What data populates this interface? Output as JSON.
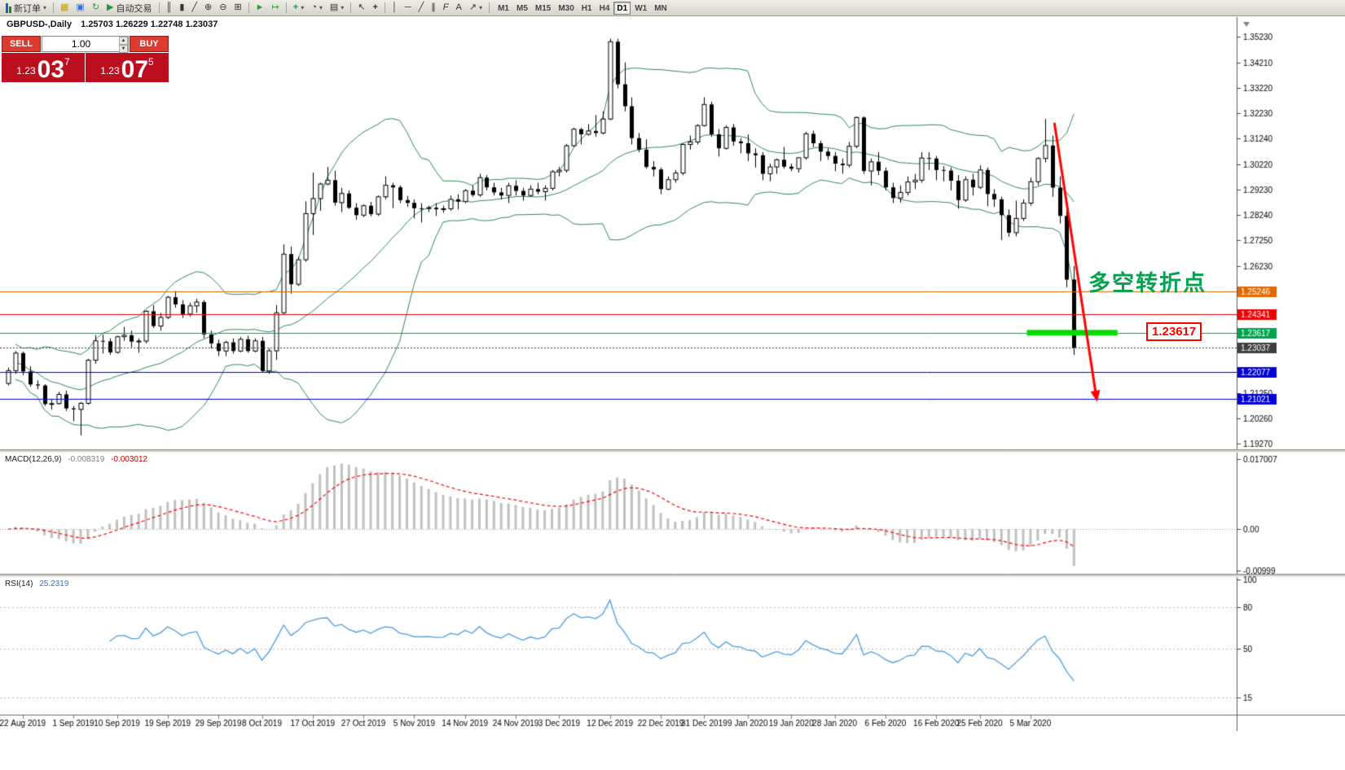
{
  "toolbar": {
    "new_order_label": "新订单",
    "auto_trading_label": "自动交易",
    "timeframes": [
      "M1",
      "M5",
      "M15",
      "M30",
      "H1",
      "H4",
      "D1",
      "W1",
      "MN"
    ],
    "active_timeframe": "D1"
  },
  "icons": {
    "market_watch": "▦",
    "profiles": "▣",
    "refresh": "↻",
    "auto_trading_play": "▶",
    "bar_chart": "║",
    "candle_chart": "▮",
    "line_chart": "╱",
    "zoom_in": "⊕",
    "zoom_out": "⊖",
    "tile_windows": "⊞",
    "auto_scroll": "►",
    "chart_shift": "↦",
    "indicators": "+",
    "periods": "◔",
    "templates": "▤",
    "cursor": "↖",
    "crosshair": "+",
    "vline": "│",
    "hline": "─",
    "trendline": "╱",
    "channel": "∥",
    "fibonacci": "F",
    "text_tool": "A",
    "arrows_tool": "↗",
    "caret": "▾",
    "spin_up": "▲",
    "spin_down": "▼"
  },
  "chart_header": {
    "title": "GBPUSD-,Daily",
    "ohlc": "1.25703 1.26229 1.22748 1.23037"
  },
  "trade_panel": {
    "sell_label": "SELL",
    "buy_label": "BUY",
    "volume": "1.00",
    "sell_small": "1.23",
    "sell_big": "03",
    "sell_sup": "7",
    "buy_small": "1.23",
    "buy_big": "07",
    "buy_sup": "5"
  },
  "indicators": {
    "macd_title": "MACD(12,26,9)",
    "macd_v1": "-0.008319",
    "macd_v2": "-0.003012",
    "rsi_title": "RSI(14)",
    "rsi_value": "25.2319"
  },
  "annotations": {
    "turning_point": "多空转折点",
    "price_label": "1.23617"
  },
  "chart_data": {
    "type": "candlestick",
    "symbol": "GBPUSD",
    "period": "Daily",
    "last_ohlc": {
      "open": 1.25703,
      "high": 1.26229,
      "low": 1.22748,
      "close": 1.23037
    },
    "candles": [
      [
        1.2163,
        1.2225,
        1.2155,
        1.2213
      ],
      [
        1.2213,
        1.229,
        1.22,
        1.2282
      ],
      [
        1.2282,
        1.2288,
        1.2195,
        1.221
      ],
      [
        1.221,
        1.223,
        1.215,
        1.2159
      ],
      [
        1.2159,
        1.2175,
        1.214,
        1.2155
      ],
      [
        1.2155,
        1.216,
        1.2075,
        1.2082
      ],
      [
        1.2082,
        1.21,
        1.206,
        1.2084
      ],
      [
        1.2084,
        1.213,
        1.208,
        1.212
      ],
      [
        1.212,
        1.2135,
        1.2055,
        1.2065
      ],
      [
        1.2065,
        1.2075,
        1.2015,
        1.2061
      ],
      [
        1.2061,
        1.209,
        1.1959,
        1.2085
      ],
      [
        1.2085,
        1.226,
        1.208,
        1.2254
      ],
      [
        1.2254,
        1.2353,
        1.224,
        1.233
      ],
      [
        1.233,
        1.2355,
        1.228,
        1.2328
      ],
      [
        1.2328,
        1.234,
        1.2275,
        1.2285
      ],
      [
        1.2285,
        1.235,
        1.228,
        1.2346
      ],
      [
        1.2346,
        1.2385,
        1.233,
        1.2352
      ],
      [
        1.2352,
        1.237,
        1.2305,
        1.2327
      ],
      [
        1.2327,
        1.234,
        1.2283,
        1.2329
      ],
      [
        1.2329,
        1.245,
        1.232,
        1.2446
      ],
      [
        1.2446,
        1.247,
        1.238,
        1.2388
      ],
      [
        1.2388,
        1.244,
        1.237,
        1.2422
      ],
      [
        1.2422,
        1.2506,
        1.2415,
        1.2501
      ],
      [
        1.2501,
        1.2525,
        1.246,
        1.2473
      ],
      [
        1.2473,
        1.249,
        1.242,
        1.2435
      ],
      [
        1.2435,
        1.248,
        1.2425,
        1.2467
      ],
      [
        1.2467,
        1.2495,
        1.244,
        1.2482
      ],
      [
        1.2482,
        1.249,
        1.234,
        1.2355
      ],
      [
        1.2355,
        1.237,
        1.23,
        1.232
      ],
      [
        1.232,
        1.2335,
        1.227,
        1.229
      ],
      [
        1.229,
        1.233,
        1.227,
        1.2324
      ],
      [
        1.2324,
        1.234,
        1.228,
        1.229
      ],
      [
        1.229,
        1.2345,
        1.2285,
        1.2336
      ],
      [
        1.2336,
        1.235,
        1.2283,
        1.229
      ],
      [
        1.229,
        1.234,
        1.2285,
        1.233
      ],
      [
        1.233,
        1.2345,
        1.2205,
        1.2212
      ],
      [
        1.2212,
        1.23,
        1.22,
        1.2291
      ],
      [
        1.2291,
        1.247,
        1.2255,
        1.244
      ],
      [
        1.244,
        1.2708,
        1.2435,
        1.267
      ],
      [
        1.267,
        1.27,
        1.2515,
        1.2552
      ],
      [
        1.2552,
        1.266,
        1.2545,
        1.2648
      ],
      [
        1.2648,
        1.2877,
        1.264,
        1.2829
      ],
      [
        1.2829,
        1.299,
        1.2745,
        1.2888
      ],
      [
        1.2888,
        1.295,
        1.284,
        1.2945
      ],
      [
        1.2945,
        1.3012,
        1.294,
        1.296
      ],
      [
        1.296,
        1.2997,
        1.286,
        1.2872
      ],
      [
        1.2872,
        1.293,
        1.2835,
        1.2908
      ],
      [
        1.2908,
        1.292,
        1.2847,
        1.2852
      ],
      [
        1.2852,
        1.287,
        1.2805,
        1.2823
      ],
      [
        1.2823,
        1.2865,
        1.2815,
        1.286
      ],
      [
        1.286,
        1.2875,
        1.2818,
        1.2827
      ],
      [
        1.2827,
        1.29,
        1.282,
        1.2895
      ],
      [
        1.2895,
        1.2975,
        1.2885,
        1.294
      ],
      [
        1.294,
        1.295,
        1.285,
        1.2932
      ],
      [
        1.2932,
        1.294,
        1.287,
        1.2882
      ],
      [
        1.2882,
        1.2898,
        1.2855,
        1.2871
      ],
      [
        1.2871,
        1.2885,
        1.281,
        1.285
      ],
      [
        1.285,
        1.287,
        1.2794,
        1.2849
      ],
      [
        1.2849,
        1.286,
        1.2835,
        1.2852
      ],
      [
        1.2852,
        1.287,
        1.282,
        1.2846
      ],
      [
        1.2846,
        1.286,
        1.2832,
        1.2848
      ],
      [
        1.2848,
        1.29,
        1.284,
        1.2885
      ],
      [
        1.2885,
        1.2905,
        1.2845,
        1.2876
      ],
      [
        1.2876,
        1.2925,
        1.287,
        1.2919
      ],
      [
        1.2919,
        1.294,
        1.2895,
        1.2902
      ],
      [
        1.2902,
        1.2985,
        1.2895,
        1.297
      ],
      [
        1.297,
        1.298,
        1.292,
        1.2932
      ],
      [
        1.2932,
        1.295,
        1.29,
        1.2912
      ],
      [
        1.2912,
        1.293,
        1.2885,
        1.29
      ],
      [
        1.29,
        1.295,
        1.287,
        1.2938
      ],
      [
        1.2938,
        1.296,
        1.29,
        1.2918
      ],
      [
        1.2918,
        1.293,
        1.288,
        1.29
      ],
      [
        1.29,
        1.294,
        1.2895,
        1.2925
      ],
      [
        1.2925,
        1.295,
        1.2905,
        1.2915
      ],
      [
        1.2915,
        1.294,
        1.288,
        1.2928
      ],
      [
        1.2928,
        1.3,
        1.292,
        1.2993
      ],
      [
        1.2993,
        1.3012,
        1.2975,
        1.2999
      ],
      [
        1.2999,
        1.3102,
        1.299,
        1.3095
      ],
      [
        1.3095,
        1.3166,
        1.309,
        1.316
      ],
      [
        1.316,
        1.3165,
        1.31,
        1.314
      ],
      [
        1.314,
        1.318,
        1.3135,
        1.3153
      ],
      [
        1.3153,
        1.3215,
        1.313,
        1.3145
      ],
      [
        1.3145,
        1.323,
        1.314,
        1.32
      ],
      [
        1.32,
        1.3515,
        1.3195,
        1.3503
      ],
      [
        1.3503,
        1.3515,
        1.332,
        1.3336
      ],
      [
        1.3336,
        1.3422,
        1.323,
        1.325
      ],
      [
        1.325,
        1.3285,
        1.31,
        1.3125
      ],
      [
        1.3125,
        1.3145,
        1.307,
        1.308
      ],
      [
        1.308,
        1.312,
        1.3005,
        1.3012
      ],
      [
        1.3012,
        1.3035,
        1.2975,
        1.3002
      ],
      [
        1.3002,
        1.301,
        1.2905,
        1.2925
      ],
      [
        1.2925,
        1.2975,
        1.292,
        1.2962
      ],
      [
        1.2962,
        1.3,
        1.295,
        1.2988
      ],
      [
        1.2988,
        1.3105,
        1.298,
        1.31
      ],
      [
        1.31,
        1.3135,
        1.308,
        1.311
      ],
      [
        1.311,
        1.318,
        1.31,
        1.3174
      ],
      [
        1.3174,
        1.3285,
        1.317,
        1.3257
      ],
      [
        1.3257,
        1.3268,
        1.313,
        1.314
      ],
      [
        1.314,
        1.316,
        1.3053,
        1.3085
      ],
      [
        1.3085,
        1.3175,
        1.308,
        1.3167
      ],
      [
        1.3167,
        1.318,
        1.3095,
        1.3112
      ],
      [
        1.3112,
        1.3125,
        1.3065,
        1.3105
      ],
      [
        1.3105,
        1.314,
        1.3035,
        1.3065
      ],
      [
        1.3065,
        1.3085,
        1.301,
        1.3058
      ],
      [
        1.3058,
        1.307,
        1.296,
        1.2985
      ],
      [
        1.2985,
        1.3025,
        1.2955,
        1.3012
      ],
      [
        1.3012,
        1.3045,
        1.2985,
        1.304
      ],
      [
        1.304,
        1.309,
        1.3005,
        1.3013
      ],
      [
        1.3013,
        1.3025,
        1.2995,
        1.3005
      ],
      [
        1.3005,
        1.305,
        1.299,
        1.3048
      ],
      [
        1.3048,
        1.315,
        1.304,
        1.3142
      ],
      [
        1.3142,
        1.3155,
        1.309,
        1.3105
      ],
      [
        1.3105,
        1.3115,
        1.3035,
        1.3072
      ],
      [
        1.3072,
        1.3085,
        1.304,
        1.3055
      ],
      [
        1.3055,
        1.307,
        1.2995,
        1.3025
      ],
      [
        1.3025,
        1.3045,
        1.2985,
        1.3019
      ],
      [
        1.3019,
        1.311,
        1.301,
        1.3093
      ],
      [
        1.3093,
        1.321,
        1.3085,
        1.3206
      ],
      [
        1.3206,
        1.321,
        1.2985,
        1.2996
      ],
      [
        1.2996,
        1.3045,
        1.294,
        1.3032
      ],
      [
        1.3032,
        1.307,
        1.298,
        1.2997
      ],
      [
        1.2997,
        1.301,
        1.292,
        1.2932
      ],
      [
        1.2932,
        1.295,
        1.287,
        1.289
      ],
      [
        1.289,
        1.294,
        1.2872,
        1.2912
      ],
      [
        1.2912,
        1.2975,
        1.29,
        1.2953
      ],
      [
        1.2953,
        1.2985,
        1.2925,
        1.296
      ],
      [
        1.296,
        1.307,
        1.295,
        1.3047
      ],
      [
        1.3047,
        1.307,
        1.3,
        1.3045
      ],
      [
        1.3045,
        1.3055,
        1.296,
        1.3
      ],
      [
        1.3,
        1.3015,
        1.2955,
        1.2998
      ],
      [
        1.2998,
        1.301,
        1.292,
        1.2958
      ],
      [
        1.2958,
        1.298,
        1.2848,
        1.2882
      ],
      [
        1.2882,
        1.2975,
        1.2875,
        1.2962
      ],
      [
        1.2962,
        1.2985,
        1.29,
        1.2932
      ],
      [
        1.2932,
        1.3018,
        1.2925,
        1.3
      ],
      [
        1.3,
        1.301,
        1.2858,
        1.2906
      ],
      [
        1.2906,
        1.2925,
        1.2855,
        1.2885
      ],
      [
        1.2885,
        1.2895,
        1.2725,
        1.2823
      ],
      [
        1.2823,
        1.2845,
        1.2738,
        1.2754
      ],
      [
        1.2754,
        1.288,
        1.274,
        1.281
      ],
      [
        1.281,
        1.2885,
        1.28,
        1.287
      ],
      [
        1.287,
        1.297,
        1.286,
        1.2954
      ],
      [
        1.2954,
        1.305,
        1.294,
        1.3045
      ],
      [
        1.3045,
        1.32,
        1.303,
        1.3096
      ],
      [
        1.3096,
        1.3135,
        1.2895,
        1.2931
      ],
      [
        1.2931,
        1.2975,
        1.279,
        1.282
      ],
      [
        1.282,
        1.285,
        1.254,
        1.257
      ],
      [
        1.25703,
        1.26229,
        1.22748,
        1.23037
      ]
    ],
    "date_labels": [
      {
        "i": 2,
        "t": "22 Aug 2019"
      },
      {
        "i": 9,
        "t": "1 Sep 2019"
      },
      {
        "i": 15,
        "t": "10 Sep 2019"
      },
      {
        "i": 22,
        "t": "19 Sep 2019"
      },
      {
        "i": 29,
        "t": "29 Sep 2019"
      },
      {
        "i": 35,
        "t": "8 Oct 2019"
      },
      {
        "i": 42,
        "t": "17 Oct 2019"
      },
      {
        "i": 49,
        "t": "27 Oct 2019"
      },
      {
        "i": 56,
        "t": "5 Nov 2019"
      },
      {
        "i": 63,
        "t": "14 Nov 2019"
      },
      {
        "i": 70,
        "t": "24 Nov 2019"
      },
      {
        "i": 76,
        "t": "3 Dec 2019"
      },
      {
        "i": 83,
        "t": "12 Dec 2019"
      },
      {
        "i": 90,
        "t": "22 Dec 2019"
      },
      {
        "i": 96,
        "t": "31 Dec 2019"
      },
      {
        "i": 102,
        "t": "9 Jan 2020"
      },
      {
        "i": 108,
        "t": "19 Jan 2020"
      },
      {
        "i": 114,
        "t": "28 Jan 2020"
      },
      {
        "i": 121,
        "t": "6 Feb 2020"
      },
      {
        "i": 128,
        "t": "16 Feb 2020"
      },
      {
        "i": 134,
        "t": "25 Feb 2020"
      },
      {
        "i": 141,
        "t": "5 Mar 2020"
      }
    ],
    "y_ticks": [
      "1.35230",
      "1.34210",
      "1.33220",
      "1.32230",
      "1.31240",
      "1.30220",
      "1.29230",
      "1.28240",
      "1.27250",
      "1.26230",
      "1.21250",
      "1.20260",
      "1.19270"
    ],
    "price_lines": [
      {
        "price": 1.25246,
        "color": "#e06a00",
        "label": "1.25246"
      },
      {
        "price": 1.24341,
        "color": "#ee0000",
        "label": "1.24341"
      },
      {
        "price": 1.23617,
        "color": "#00a44e",
        "label": "1.23617"
      },
      {
        "price": 1.22077,
        "color": "#0000d8",
        "label": "1.22077"
      },
      {
        "price": 1.21021,
        "color": "#0000d8",
        "label": "1.21021"
      }
    ],
    "bid_line": {
      "price": 1.23037,
      "label": "1.23037",
      "color": "#3f3f3f"
    },
    "highlight_band": {
      "price": 1.23617,
      "from_bar": 140.5,
      "to_bar": 153,
      "color": "#00dd00",
      "thickness": 7
    },
    "trend_arrow": {
      "from_bar": 144.3,
      "from_price": 1.3185,
      "to_bar": 150,
      "to_price": 1.2125,
      "color": "#ff0000"
    },
    "bollinger": {
      "period": 20,
      "deviation": 2,
      "color": "#2e8b57"
    },
    "macd": {
      "params": "12,26,9",
      "value_main": -0.008319,
      "value_signal": -0.003012,
      "scale_labels": [
        "0.017007",
        "0.00",
        "-0.00999"
      ]
    },
    "rsi": {
      "params": "14",
      "value": 25.2319,
      "levels": [
        80,
        50,
        15
      ],
      "scale_labels": [
        "100",
        "80",
        "50",
        "15"
      ]
    }
  }
}
